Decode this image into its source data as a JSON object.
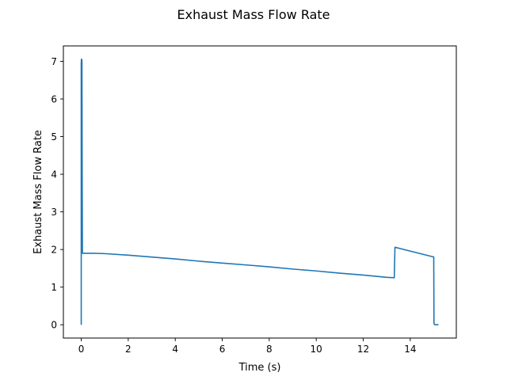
{
  "chart_data": {
    "type": "line",
    "title": "Exhaust Mass Flow Rate",
    "xlabel": "Time (s)",
    "ylabel": "Exhaust Mass Flow Rate",
    "xlim": [
      -0.76,
      15.96
    ],
    "ylim": [
      -0.353,
      7.41
    ],
    "xticks": [
      0,
      2,
      4,
      6,
      8,
      10,
      12,
      14
    ],
    "yticks": [
      0,
      1,
      2,
      3,
      4,
      5,
      6,
      7
    ],
    "grid": false,
    "legend": "none",
    "series": [
      {
        "color": "#1f77b4",
        "x": [
          0.0,
          0.0,
          0.01,
          0.02,
          0.03,
          0.04,
          0.05,
          0.06,
          0.1,
          0.5,
          1.0,
          2.0,
          3.0,
          4.0,
          5.0,
          6.0,
          7.0,
          8.0,
          9.0,
          10.0,
          11.0,
          12.0,
          13.0,
          13.32,
          13.35,
          15.0,
          15.01,
          15.05,
          15.2
        ],
        "y": [
          0.0,
          6.95,
          7.06,
          7.05,
          7.03,
          4.0,
          1.9,
          1.9,
          1.9,
          1.9,
          1.89,
          1.85,
          1.8,
          1.75,
          1.69,
          1.64,
          1.59,
          1.54,
          1.48,
          1.43,
          1.37,
          1.32,
          1.26,
          1.25,
          2.06,
          1.8,
          0.03,
          0.0,
          0.0
        ]
      }
    ]
  }
}
